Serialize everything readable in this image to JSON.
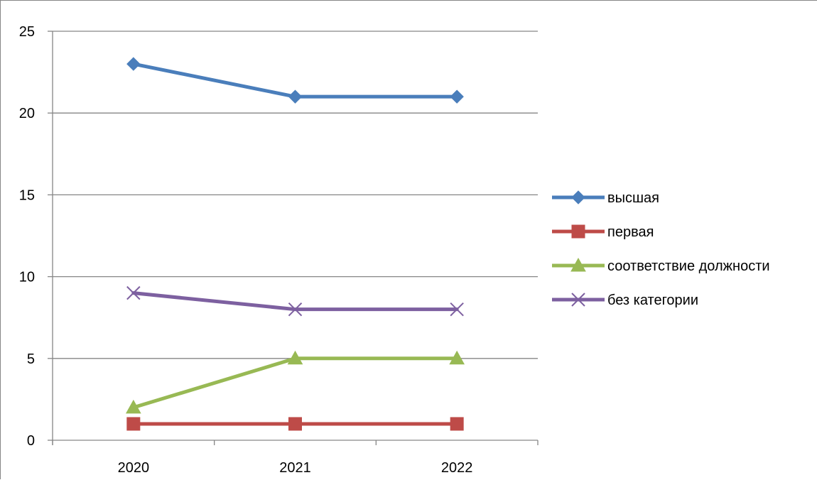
{
  "chart_data": {
    "type": "line",
    "title": "",
    "xlabel": "",
    "ylabel": "",
    "categories": [
      "2020",
      "2021",
      "2022"
    ],
    "ylim": [
      0,
      25
    ],
    "yticks": [
      0,
      5,
      10,
      15,
      20,
      25
    ],
    "grid": true,
    "legend_position": "right",
    "series": [
      {
        "name": "высшая",
        "values": [
          23,
          21,
          21
        ],
        "color": "#4A7EBB",
        "marker": "diamond"
      },
      {
        "name": "первая",
        "values": [
          1,
          1,
          1
        ],
        "color": "#BE4B48",
        "marker": "square"
      },
      {
        "name": "соответствие должности",
        "values": [
          2,
          5,
          5
        ],
        "color": "#98B954",
        "marker": "triangle"
      },
      {
        "name": "без категории",
        "values": [
          9,
          8,
          8
        ],
        "color": "#7D60A0",
        "marker": "x"
      }
    ]
  }
}
